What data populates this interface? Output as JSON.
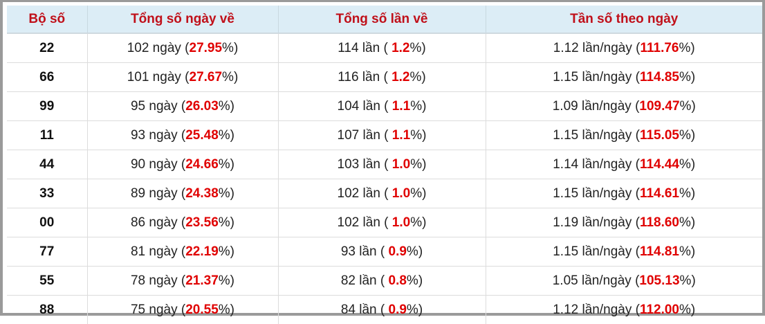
{
  "table": {
    "header": [
      "Bộ số",
      "Tổng số ngày về",
      "Tổng số lần về",
      "Tần số theo ngày"
    ],
    "rows": [
      [
        "22",
        [
          "102 ngày (",
          "27.95",
          "%)"
        ],
        [
          "114 lần ( ",
          "1.2",
          "%)"
        ],
        [
          "1.12 lần/ngày (",
          "111.76",
          "%)"
        ]
      ],
      [
        "66",
        [
          "101 ngày (",
          "27.67",
          "%)"
        ],
        [
          "116 lần ( ",
          "1.2",
          "%)"
        ],
        [
          "1.15 lần/ngày (",
          "114.85",
          "%)"
        ]
      ],
      [
        "99",
        [
          "95 ngày (",
          "26.03",
          "%)"
        ],
        [
          "104 lần ( ",
          "1.1",
          "%)"
        ],
        [
          "1.09 lần/ngày (",
          "109.47",
          "%)"
        ]
      ],
      [
        "11",
        [
          "93 ngày (",
          "25.48",
          "%)"
        ],
        [
          "107 lần ( ",
          "1.1",
          "%)"
        ],
        [
          "1.15 lần/ngày (",
          "115.05",
          "%)"
        ]
      ],
      [
        "44",
        [
          "90 ngày (",
          "24.66",
          "%)"
        ],
        [
          "103 lần ( ",
          "1.0",
          "%)"
        ],
        [
          "1.14 lần/ngày (",
          "114.44",
          "%)"
        ]
      ],
      [
        "33",
        [
          "89 ngày (",
          "24.38",
          "%)"
        ],
        [
          "102 lần ( ",
          "1.0",
          "%)"
        ],
        [
          "1.15 lần/ngày (",
          "114.61",
          "%)"
        ]
      ],
      [
        "00",
        [
          "86 ngày (",
          "23.56",
          "%)"
        ],
        [
          "102 lần ( ",
          "1.0",
          "%)"
        ],
        [
          "1.19 lần/ngày (",
          "118.60",
          "%)"
        ]
      ],
      [
        "77",
        [
          "81 ngày (",
          "22.19",
          "%)"
        ],
        [
          "93 lần ( ",
          "0.9",
          "%)"
        ],
        [
          "1.15 lần/ngày (",
          "114.81",
          "%)"
        ]
      ],
      [
        "55",
        [
          "78 ngày (",
          "21.37",
          "%)"
        ],
        [
          "82 lần ( ",
          "0.8",
          "%)"
        ],
        [
          "1.05 lần/ngày (",
          "105.13",
          "%)"
        ]
      ],
      [
        "88",
        [
          "75 ngày (",
          "20.55",
          "%)"
        ],
        [
          "84 lần ( ",
          "0.9",
          "%)"
        ],
        [
          "1.12 lần/ngày (",
          "112.00",
          "%)"
        ]
      ]
    ]
  }
}
